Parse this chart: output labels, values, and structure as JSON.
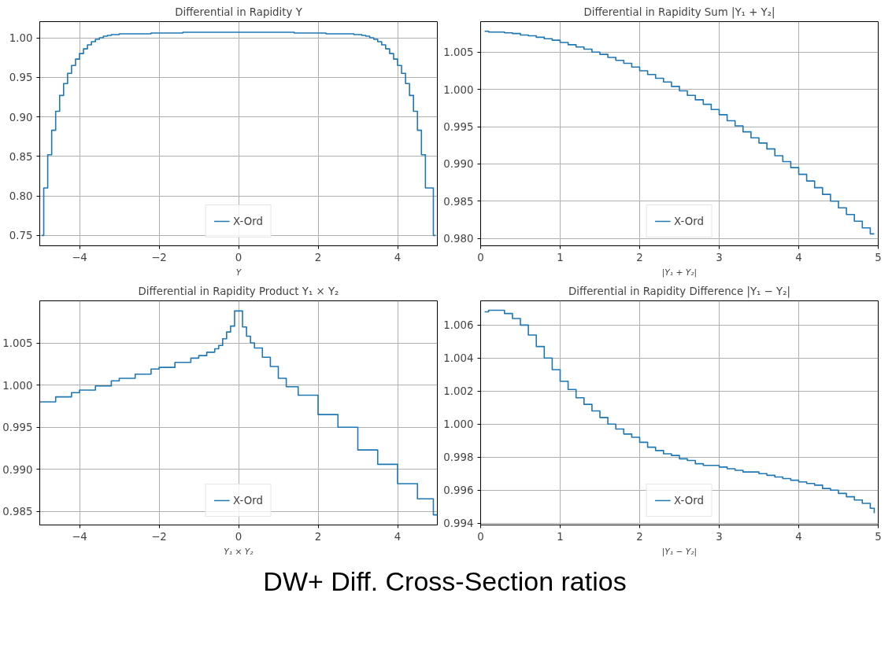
{
  "chart_data": [
    {
      "type": "step",
      "title": "Differential in Rapidity Y",
      "xlabel": "Y",
      "legend": "bottom",
      "grid": true,
      "xlim": [
        -5,
        5
      ],
      "ylim": [
        0.7369,
        1.0204
      ],
      "xticks": [
        -4,
        -2,
        0,
        2,
        4
      ],
      "yticks": [
        0.75,
        {
          "value": 0.8,
          "label": "0.80"
        },
        0.85,
        {
          "value": 0.9,
          "label": "0.90"
        },
        0.95,
        {
          "value": 1.0,
          "label": "1.00"
        }
      ],
      "series": [
        {
          "name": "X-Ord",
          "color": "#1f77b4",
          "x": [
            -4.95,
            -4.9,
            -4.8,
            -4.7,
            -4.6,
            -4.5,
            -4.4,
            -4.3,
            -4.2,
            -4.1,
            -4.0,
            -3.9,
            -3.8,
            -3.7,
            -3.6,
            -3.5,
            -3.4,
            -3.3,
            -3.2,
            -3.0,
            -2.2,
            -1.4,
            1.4,
            2.2,
            2.9,
            3.1,
            3.2,
            3.3,
            3.4,
            3.5,
            3.6,
            3.7,
            3.8,
            3.9,
            4.0,
            4.1,
            4.2,
            4.3,
            4.4,
            4.5,
            4.6,
            4.7,
            4.8,
            4.9,
            4.95
          ],
          "values": [
            0.75,
            0.81,
            0.852,
            0.883,
            0.907,
            0.927,
            0.942,
            0.955,
            0.965,
            0.973,
            0.98,
            0.986,
            0.991,
            0.995,
            0.998,
            1.0,
            1.002,
            1.003,
            1.004,
            1.005,
            1.006,
            1.007,
            1.006,
            1.005,
            1.004,
            1.003,
            1.002,
            1.0,
            0.998,
            0.995,
            0.991,
            0.986,
            0.98,
            0.973,
            0.965,
            0.955,
            0.942,
            0.927,
            0.907,
            0.883,
            0.852,
            0.81,
            0.81,
            0.75,
            0.75
          ]
        }
      ]
    },
    {
      "type": "step",
      "title": "Differential in Rapidity Sum |Y₁ + Y₂|",
      "xlabel": "|Y₁ + Y₂|",
      "legend": "bottom",
      "grid": true,
      "xlim": [
        0,
        5
      ],
      "ylim": [
        0.979,
        1.0091
      ],
      "xticks": [
        0,
        1,
        2,
        3,
        4,
        5
      ],
      "yticks": [
        {
          "value": 0.98,
          "label": "0.980"
        },
        0.985,
        {
          "value": 0.99,
          "label": "0.990"
        },
        0.995,
        {
          "value": 1.0,
          "label": "1.000"
        },
        1.005
      ],
      "series": [
        {
          "name": "X-Ord",
          "color": "#1f77b4",
          "x": [
            0.05,
            0.1,
            0.2,
            0.3,
            0.4,
            0.5,
            0.6,
            0.7,
            0.8,
            0.9,
            1.0,
            1.1,
            1.2,
            1.3,
            1.4,
            1.5,
            1.6,
            1.7,
            1.8,
            1.9,
            2.0,
            2.1,
            2.2,
            2.3,
            2.4,
            2.5,
            2.6,
            2.7,
            2.8,
            2.9,
            3.0,
            3.1,
            3.2,
            3.3,
            3.4,
            3.5,
            3.6,
            3.7,
            3.8,
            3.9,
            4.0,
            4.1,
            4.2,
            4.3,
            4.4,
            4.5,
            4.6,
            4.7,
            4.8,
            4.9,
            4.95
          ],
          "values": [
            1.0078,
            1.0077,
            1.0077,
            1.0076,
            1.0075,
            1.0073,
            1.0072,
            1.007,
            1.0068,
            1.0066,
            1.0063,
            1.006,
            1.0057,
            1.0054,
            1.005,
            1.0047,
            1.0043,
            1.0039,
            1.0035,
            1.003,
            1.0025,
            1.002,
            1.0015,
            1.001,
            1.0004,
            0.9998,
            0.9992,
            0.9986,
            0.998,
            0.9973,
            0.9966,
            0.9958,
            0.9951,
            0.9943,
            0.9935,
            0.9928,
            0.992,
            0.9911,
            0.9903,
            0.9895,
            0.9886,
            0.9877,
            0.9868,
            0.9859,
            0.985,
            0.9841,
            0.9832,
            0.9823,
            0.9814,
            0.9806,
            0.9806
          ]
        }
      ]
    },
    {
      "type": "step",
      "title": "Differential in Rapidity Product Y₁ × Y₂",
      "xlabel": "Y₁ × Y₂",
      "legend": "bottom",
      "grid": true,
      "xlim": [
        -5,
        5
      ],
      "ylim": [
        0.9834,
        1.01
      ],
      "xticks": [
        -4,
        -2,
        0,
        2,
        4
      ],
      "yticks": [
        0.985,
        {
          "value": 0.99,
          "label": "0.990"
        },
        0.995,
        {
          "value": 1.0,
          "label": "1.000"
        },
        1.005
      ],
      "series": [
        {
          "name": "X-Ord",
          "color": "#1f77b4",
          "x": [
            -5.0,
            -4.6,
            -4.2,
            -4.0,
            -3.6,
            -3.2,
            -3.0,
            -2.6,
            -2.2,
            -2.0,
            -1.6,
            -1.2,
            -1.0,
            -0.8,
            -0.6,
            -0.5,
            -0.4,
            -0.3,
            -0.2,
            -0.1,
            0.1,
            0.2,
            0.3,
            0.4,
            0.6,
            0.8,
            1.0,
            1.2,
            1.5,
            2.0,
            2.5,
            3.0,
            3.5,
            4.0,
            4.5,
            4.9,
            5.0
          ],
          "values": [
            0.998,
            0.9986,
            0.9991,
            0.9994,
            0.9999,
            1.0005,
            1.0008,
            1.0013,
            1.0019,
            1.0021,
            1.0027,
            1.0032,
            1.0035,
            1.0039,
            1.0043,
            1.0047,
            1.0055,
            1.0063,
            1.007,
            1.0088,
            1.0069,
            1.0058,
            1.005,
            1.0044,
            1.0033,
            1.0022,
            1.0008,
            0.9998,
            0.9988,
            0.9965,
            0.995,
            0.9923,
            0.9906,
            0.9883,
            0.9865,
            0.9846,
            0.9846
          ]
        }
      ]
    },
    {
      "type": "step",
      "title": "Differential in Rapidity Difference |Y₁ − Y₂|",
      "xlabel": "|Y₁ − Y₂|",
      "legend": "bottom",
      "grid": true,
      "xlim": [
        0,
        5
      ],
      "ylim": [
        0.99389,
        1.00747
      ],
      "xticks": [
        0,
        1,
        2,
        3,
        4,
        5
      ],
      "yticks": [
        0.994,
        0.996,
        0.998,
        {
          "value": 1.0,
          "label": "1.000"
        },
        1.002,
        1.004,
        1.006
      ],
      "annotations": [
        "DW+ Diff. Cross-Section ratios"
      ],
      "series": [
        {
          "name": "X-Ord",
          "color": "#1f77b4",
          "x": [
            0.05,
            0.1,
            0.2,
            0.3,
            0.4,
            0.5,
            0.6,
            0.7,
            0.8,
            0.9,
            1.0,
            1.1,
            1.2,
            1.3,
            1.4,
            1.5,
            1.6,
            1.7,
            1.8,
            1.9,
            2.0,
            2.1,
            2.2,
            2.3,
            2.4,
            2.5,
            2.6,
            2.7,
            2.8,
            2.9,
            3.0,
            3.1,
            3.2,
            3.3,
            3.4,
            3.5,
            3.6,
            3.7,
            3.8,
            3.9,
            4.0,
            4.1,
            4.2,
            4.3,
            4.4,
            4.5,
            4.6,
            4.7,
            4.8,
            4.9,
            4.95
          ],
          "values": [
            1.0068,
            1.0069,
            1.0069,
            1.0067,
            1.0064,
            1.006,
            1.0054,
            1.0047,
            1.004,
            1.0033,
            1.0026,
            1.0021,
            1.0016,
            1.0012,
            1.0008,
            1.0004,
            1.0,
            0.9997,
            0.9994,
            0.9992,
            0.9989,
            0.9986,
            0.9984,
            0.9982,
            0.9981,
            0.9979,
            0.9978,
            0.9976,
            0.9975,
            0.9975,
            0.9974,
            0.9973,
            0.9972,
            0.9971,
            0.9971,
            0.997,
            0.9969,
            0.9968,
            0.9967,
            0.9966,
            0.9965,
            0.9964,
            0.9963,
            0.9961,
            0.996,
            0.9958,
            0.9956,
            0.9954,
            0.9952,
            0.9949,
            0.9946
          ]
        }
      ]
    }
  ]
}
